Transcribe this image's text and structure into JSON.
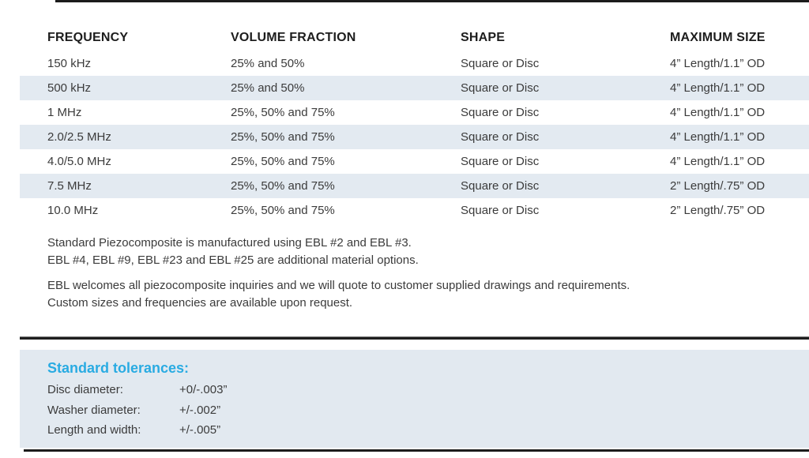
{
  "table": {
    "columns": [
      "FREQUENCY",
      "VOLUME FRACTION",
      "SHAPE",
      "MAXIMUM SIZE"
    ],
    "rows": [
      {
        "frequency": "150 kHz",
        "volume_fraction": "25% and 50%",
        "shape": "Square or Disc",
        "maximum_size": "4” Length/1.1” OD"
      },
      {
        "frequency": "500 kHz",
        "volume_fraction": "25% and 50%",
        "shape": "Square or Disc",
        "maximum_size": "4” Length/1.1” OD"
      },
      {
        "frequency": "1 MHz",
        "volume_fraction": "25%, 50% and 75%",
        "shape": "Square or Disc",
        "maximum_size": "4” Length/1.1” OD"
      },
      {
        "frequency": "2.0/2.5 MHz",
        "volume_fraction": "25%, 50% and 75%",
        "shape": "Square or Disc",
        "maximum_size": "4” Length/1.1” OD"
      },
      {
        "frequency": "4.0/5.0 MHz",
        "volume_fraction": "25%, 50% and 75%",
        "shape": "Square or Disc",
        "maximum_size": "4” Length/1.1” OD"
      },
      {
        "frequency": "7.5 MHz",
        "volume_fraction": "25%, 50% and 75%",
        "shape": "Square or Disc",
        "maximum_size": "2” Length/.75” OD"
      },
      {
        "frequency": "10.0 MHz",
        "volume_fraction": "25%, 50% and 75%",
        "shape": "Square or Disc",
        "maximum_size": "2” Length/.75” OD"
      }
    ]
  },
  "notes": {
    "materials_line1": "Standard Piezocomposite is manufactured using EBL #2 and EBL #3.",
    "materials_line2": "EBL #4, EBL #9, EBL #23 and EBL #25 are additional material options.",
    "inquiries_line1": "EBL welcomes all piezocomposite inquiries and we will quote to customer supplied drawings and requirements.",
    "inquiries_line2": "Custom sizes and frequencies are available upon request."
  },
  "tolerances": {
    "heading": "Standard tolerances:",
    "items": [
      {
        "label": "Disc diameter:",
        "value": "+0/-.003”"
      },
      {
        "label": "Washer diameter:",
        "value": "+/-.002”"
      },
      {
        "label": "Length and width:",
        "value": "+/-.005”"
      }
    ]
  },
  "colors": {
    "row_stripe": "#e3eaf1",
    "tolerance_box": "#e2e9f0",
    "accent_cyan": "#29abe2",
    "rule_dark": "#1c1c1c",
    "body_text": "#3b3b3b",
    "header_text": "#1d1d1d"
  }
}
